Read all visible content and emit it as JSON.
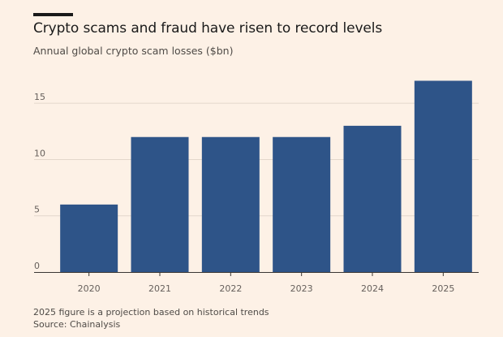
{
  "header": {
    "title": "Crypto scams and fraud have risen to record levels",
    "subtitle": "Annual global crypto scam losses ($bn)"
  },
  "footer": {
    "note": "2025 figure is a projection based on historical trends",
    "source": "Source: Chainalysis"
  },
  "colors": {
    "bar": "#2e5488",
    "grid": "#e3d7cb",
    "axis": "#3a3633",
    "background": "#fdf1e6"
  },
  "chart_data": {
    "type": "bar",
    "title": "Crypto scams and fraud have risen to record levels",
    "subtitle": "Annual global crypto scam losses ($bn)",
    "categories": [
      "2020",
      "2021",
      "2022",
      "2023",
      "2024",
      "2025"
    ],
    "values": [
      6,
      12,
      12,
      12,
      13,
      17
    ],
    "ylim": [
      0,
      17.9
    ],
    "yticks": [
      0,
      5,
      10,
      15
    ],
    "ytick_labels": [
      "0",
      "5",
      "10",
      "15"
    ],
    "grid": true,
    "legend": "none"
  }
}
